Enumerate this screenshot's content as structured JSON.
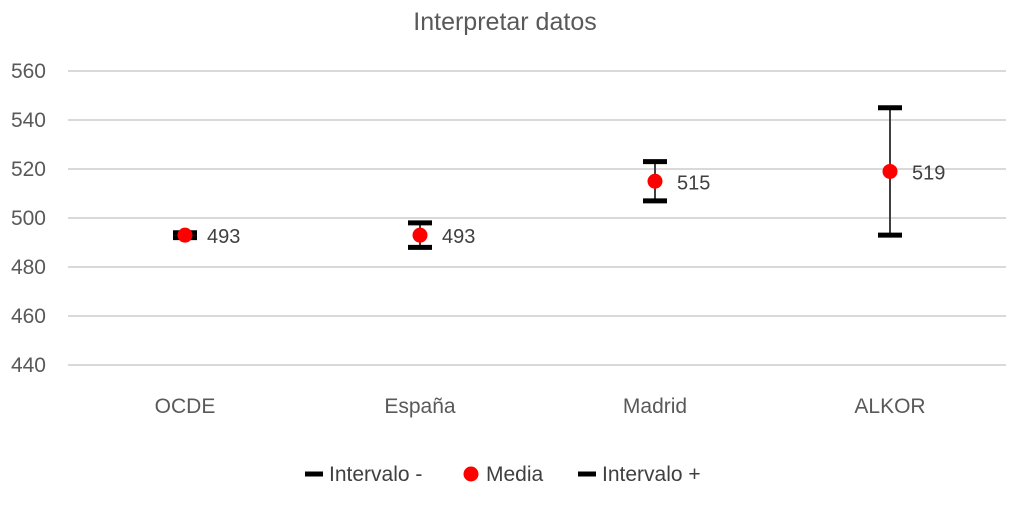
{
  "chart_data": {
    "type": "scatter",
    "title": "Interpretar datos",
    "xlabel": "",
    "ylabel": "",
    "categories": [
      "OCDE",
      "España",
      "Madrid",
      "ALKOR"
    ],
    "yticks": [
      "560",
      "540",
      "520",
      "500",
      "480",
      "460",
      "440"
    ],
    "ylim": [
      440,
      560
    ],
    "grid": true,
    "legend_position": "bottom",
    "series": [
      {
        "name": "Intervalo -",
        "values": [
          492,
          488,
          507,
          493
        ],
        "marker": "dash",
        "color": "#000000"
      },
      {
        "name": "Media",
        "values": [
          493,
          493,
          515,
          519
        ],
        "marker": "circle",
        "color": "#ff0000"
      },
      {
        "name": "Intervalo +",
        "values": [
          494,
          498,
          523,
          545
        ],
        "marker": "dash",
        "color": "#000000"
      }
    ],
    "data_labels": [
      "493",
      "493",
      "515",
      "519"
    ]
  }
}
